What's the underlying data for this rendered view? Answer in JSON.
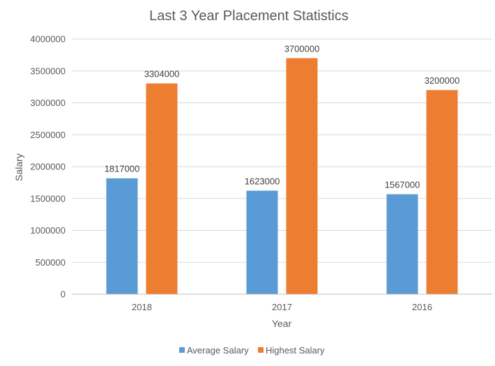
{
  "chart_data": {
    "type": "bar",
    "title": "Last 3 Year Placement Statistics",
    "xlabel": "Year",
    "ylabel": "Salary",
    "categories": [
      "2018",
      "2017",
      "2016"
    ],
    "series": [
      {
        "name": "Average Salary",
        "color": "#5B9BD5",
        "values": [
          1817000,
          1623000,
          1567000
        ]
      },
      {
        "name": "Highest Salary",
        "color": "#ED7D31",
        "values": [
          3304000,
          3700000,
          3200000
        ]
      }
    ],
    "ylim": [
      0,
      4000000
    ],
    "yticks": [
      "0",
      "500000",
      "1000000",
      "1500000",
      "2000000",
      "2500000",
      "3000000",
      "3500000",
      "4000000"
    ],
    "grid": true,
    "legend_position": "bottom",
    "data_labels": true,
    "gridline_color": "#D9D9D9",
    "axis_line_color": "#BFBFBF",
    "text_color": "#595959"
  }
}
